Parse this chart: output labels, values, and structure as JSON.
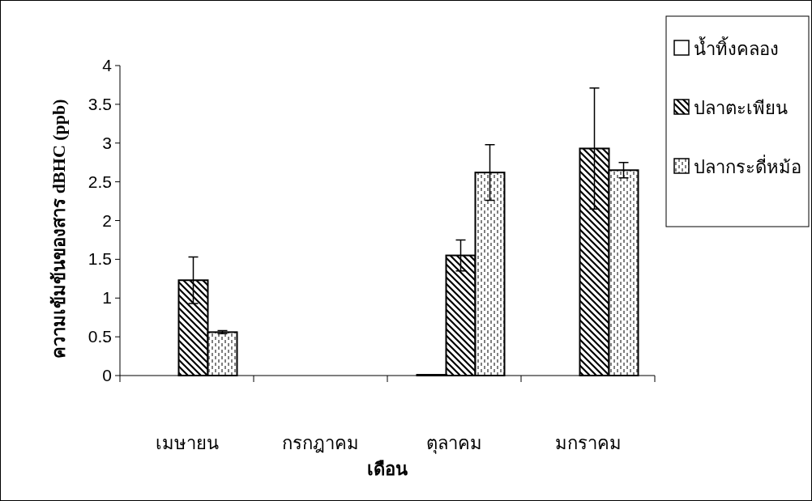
{
  "chart_data": {
    "type": "bar",
    "xlabel": "เดือน",
    "ylabel": "ความเข้มข้นของสาร dBHC (ppb)",
    "categories": [
      "เมษายน",
      "กรกฎาคม",
      "ตุลาคม",
      "มกราคม"
    ],
    "series": [
      {
        "name": "น้ำทิ้งคลอง",
        "color": "#000000",
        "values": [
          0,
          0,
          0.01,
          0
        ]
      },
      {
        "name": "ปลาตะเพียน",
        "color": "#000000",
        "values": [
          1.23,
          0,
          1.55,
          2.93
        ],
        "errors": [
          0.3,
          null,
          0.2,
          0.78
        ]
      },
      {
        "name": "ปลากระดี่หม้อ",
        "color": "#000000",
        "values": [
          0.56,
          0,
          2.62,
          2.65
        ],
        "errors": [
          0.02,
          null,
          0.36,
          0.1
        ]
      }
    ],
    "ylim": [
      0,
      4
    ],
    "yticks": [
      0,
      0.5,
      1,
      1.5,
      2,
      2.5,
      3,
      3.5,
      4
    ],
    "grid": false,
    "legend": "top right"
  }
}
